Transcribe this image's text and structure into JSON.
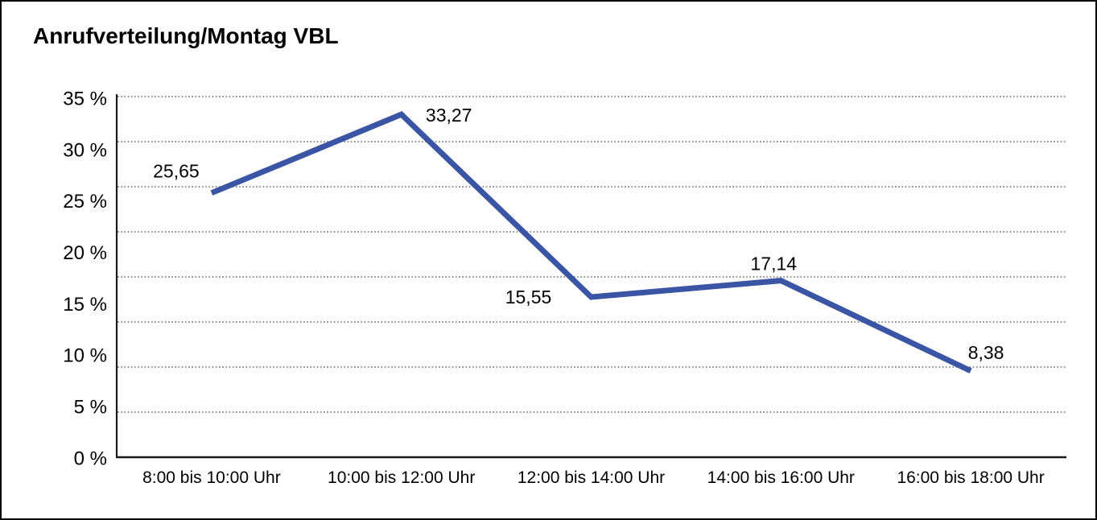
{
  "title": "Anrufverteilung/Montag VBL",
  "chart_data": {
    "type": "line",
    "title": "Anrufverteilung/Montag VBL",
    "categories": [
      "8:00 bis 10:00 Uhr",
      "10:00 bis 12:00 Uhr",
      "12:00 bis 14:00 Uhr",
      "14:00 bis 16:00 Uhr",
      "16:00 bis 18:00 Uhr"
    ],
    "values": [
      25.65,
      33.27,
      15.55,
      17.14,
      8.38
    ],
    "point_labels": [
      "25,65",
      "33,27",
      "15,55",
      "17,14",
      "8,38"
    ],
    "ylim": [
      0,
      35
    ],
    "ytick_step": 5,
    "ytick_labels": [
      "35 %",
      "30 %",
      "25 %",
      "20 %",
      "15 %",
      "10 %",
      "5 %",
      "0 %"
    ],
    "unit": "%",
    "legend": "none",
    "grid": "horizontal-dotted",
    "line_color": "#3A55A4",
    "axis_color": "#1a1a1a",
    "grid_color": "#4a4a4a"
  }
}
